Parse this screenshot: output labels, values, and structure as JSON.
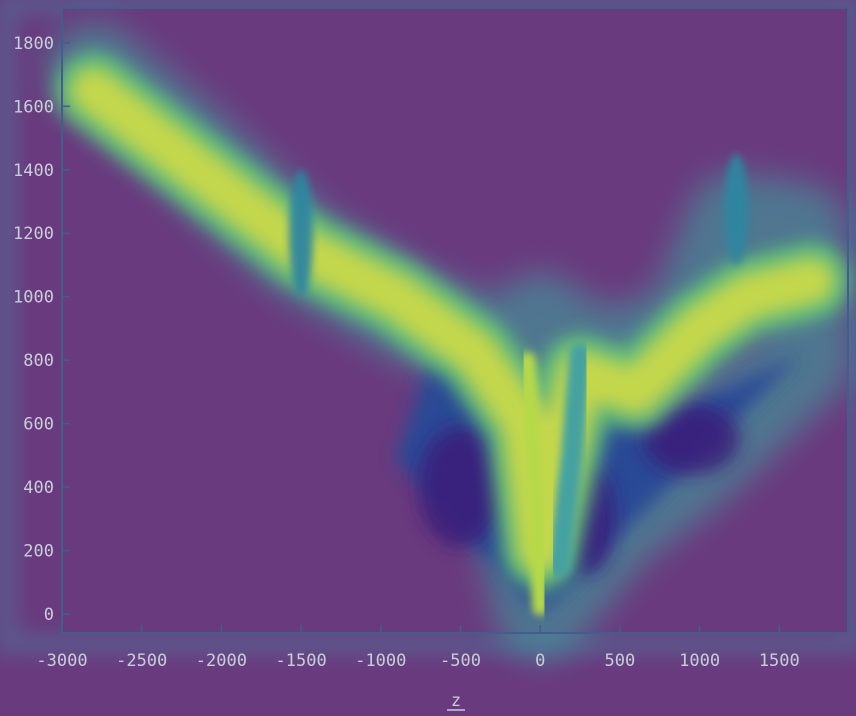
{
  "chart_data": {
    "type": "heatmap",
    "title": "",
    "xlabel": "z",
    "ylabel": "",
    "xlim": [
      -3000,
      1900
    ],
    "ylim": [
      -30,
      1900
    ],
    "grid": false,
    "colormap": "viridis",
    "x_ticks": [
      {
        "value": -3000,
        "label": "-3000"
      },
      {
        "value": -2500,
        "label": "-2500"
      },
      {
        "value": -2000,
        "label": "-2000"
      },
      {
        "value": -1500,
        "label": "-1500"
      },
      {
        "value": -1000,
        "label": "-1000"
      },
      {
        "value": -500,
        "label": "-500"
      },
      {
        "value": 0,
        "label": "0"
      },
      {
        "value": 500,
        "label": "500"
      },
      {
        "value": 1000,
        "label": "1000"
      },
      {
        "value": 1500,
        "label": "1500"
      }
    ],
    "y_ticks": [
      {
        "value": 0,
        "label": "0"
      },
      {
        "value": 200,
        "label": "200"
      },
      {
        "value": 400,
        "label": "400"
      },
      {
        "value": 600,
        "label": "600"
      },
      {
        "value": 800,
        "label": "800"
      },
      {
        "value": 1000,
        "label": "1000"
      },
      {
        "value": 1200,
        "label": "1200"
      },
      {
        "value": 1400,
        "label": "1400"
      },
      {
        "value": 1600,
        "label": "1600"
      },
      {
        "value": 1800,
        "label": "1800"
      }
    ],
    "high_density_band": [
      {
        "x": -2800,
        "y": 1650
      },
      {
        "x": -2200,
        "y": 1420
      },
      {
        "x": -1500,
        "y": 1150
      },
      {
        "x": -900,
        "y": 1000
      },
      {
        "x": -400,
        "y": 820
      },
      {
        "x": -100,
        "y": 600
      },
      {
        "x": 0,
        "y": 200
      },
      {
        "x": 250,
        "y": 760
      },
      {
        "x": 600,
        "y": 700
      },
      {
        "x": 1000,
        "y": 900
      },
      {
        "x": 1300,
        "y": 1000
      },
      {
        "x": 1700,
        "y": 1050
      }
    ],
    "low_value_regions": [
      {
        "x": -500,
        "y": 400
      },
      {
        "x": 300,
        "y": 300
      },
      {
        "x": 950,
        "y": 550
      }
    ],
    "isolated_streaks": [
      {
        "x": -1500,
        "y_range": [
          1000,
          1400
        ]
      },
      {
        "x": 1230,
        "y_range": [
          1100,
          1450
        ]
      }
    ]
  }
}
